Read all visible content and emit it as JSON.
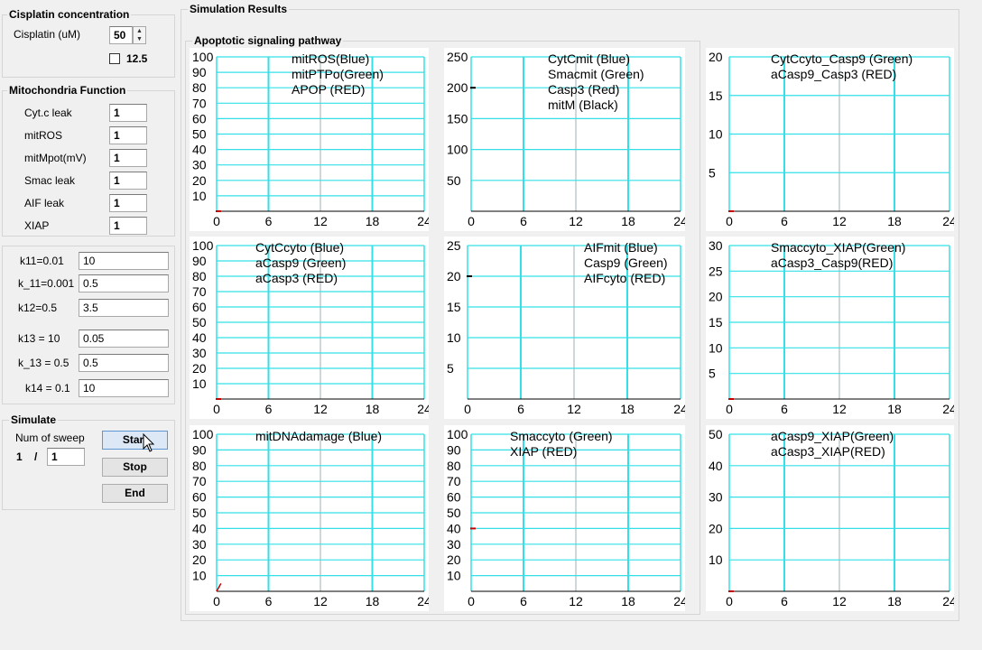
{
  "cisplatin": {
    "title": "Cisplatin concentration",
    "label": "Cisplatin (uM)",
    "value": "50",
    "checkbox_label": "12.5",
    "checkbox_checked": false
  },
  "mito": {
    "title": "Mitochondria Function",
    "fields": [
      {
        "label": "Cyt.c leak",
        "value": "1"
      },
      {
        "label": "mitROS",
        "value": "1"
      },
      {
        "label": "mitMpot(mV)",
        "value": "1"
      },
      {
        "label": "Smac leak",
        "value": "1"
      },
      {
        "label": "AIF leak",
        "value": "1"
      },
      {
        "label": "XIAP",
        "value": "1"
      }
    ]
  },
  "rates": [
    {
      "label": "k11=0.01",
      "value": "10"
    },
    {
      "label": "k_11=0.001",
      "value": "0.5"
    },
    {
      "label": "k12=0.5",
      "value": "3.5"
    },
    {
      "label": "k13 = 10",
      "value": "0.05"
    },
    {
      "label": "k_13 = 0.5",
      "value": "0.5"
    },
    {
      "label": "k14 = 0.1",
      "value": "10"
    }
  ],
  "simulate": {
    "title": "Simulate",
    "sweep_label": "Num of sweep",
    "current": "1",
    "sep": "/",
    "total": "1",
    "start": "Start",
    "stop": "Stop",
    "end": "End"
  },
  "results": {
    "title": "Simulation Results",
    "subtitle": "Apoptotic signaling pathway"
  },
  "chart_data": [
    {
      "type": "line",
      "ylim": [
        0,
        100
      ],
      "yticks": [
        10,
        20,
        30,
        40,
        50,
        60,
        70,
        80,
        90,
        100
      ],
      "legend": [
        "mitROS(Blue)",
        "mitPTPo(Green)",
        "APOP (RED)"
      ],
      "series": [],
      "marks": [
        {
          "x": 0,
          "y": 0,
          "color": "#c00000"
        }
      ]
    },
    {
      "type": "line",
      "ylim": [
        0,
        250
      ],
      "yticks": [
        50,
        100,
        150,
        200,
        250
      ],
      "legend": [
        "CytCmit (Blue)",
        "Smacmit (Green)",
        "Casp3 (Red)",
        "mitM (Black)"
      ],
      "series": [],
      "marks": [
        {
          "x": 0,
          "y": 200,
          "color": "#000000"
        }
      ]
    },
    {
      "type": "line",
      "ylim": [
        0,
        20
      ],
      "yticks": [
        5,
        10,
        15,
        20
      ],
      "legend": [
        "CytCcyto_Casp9 (Green)",
        "aCasp9_Casp3 (RED)"
      ],
      "series": [],
      "marks": [
        {
          "x": 0,
          "y": 0,
          "color": "#c00000"
        }
      ]
    },
    {
      "type": "line",
      "ylim": [
        0,
        100
      ],
      "yticks": [
        10,
        20,
        30,
        40,
        50,
        60,
        70,
        80,
        90,
        100
      ],
      "legend": [
        "CytCcyto (Blue)",
        "aCasp9 (Green)",
        "aCasp3 (RED)"
      ],
      "series": [],
      "marks": [
        {
          "x": 0,
          "y": 0,
          "color": "#c00000"
        }
      ]
    },
    {
      "type": "line",
      "ylim": [
        0,
        25
      ],
      "yticks": [
        5,
        10,
        15,
        20,
        25
      ],
      "legend": [
        "AIFmit (Blue)",
        "Casp9 (Green)",
        "AIFcyto (RED)"
      ],
      "series": [],
      "marks": [
        {
          "x": 0,
          "y": 20,
          "color": "#000000"
        }
      ]
    },
    {
      "type": "line",
      "ylim": [
        0,
        30
      ],
      "yticks": [
        5,
        10,
        15,
        20,
        25,
        30
      ],
      "legend": [
        "Smaccyto_XIAP(Green)",
        "aCasp3_Casp9(RED)"
      ],
      "series": [],
      "marks": [
        {
          "x": 0,
          "y": 0,
          "color": "#c00000"
        }
      ]
    },
    {
      "type": "line",
      "ylim": [
        0,
        100
      ],
      "yticks": [
        10,
        20,
        30,
        40,
        50,
        60,
        70,
        80,
        90,
        100
      ],
      "legend": [
        "mitDNAdamage (Blue)"
      ],
      "series": [],
      "marks": [
        {
          "x": 0,
          "y": 0,
          "color": "#c00000",
          "x2": 0.5,
          "y2": 5
        }
      ]
    },
    {
      "type": "line",
      "ylim": [
        0,
        100
      ],
      "yticks": [
        10,
        20,
        30,
        40,
        50,
        60,
        70,
        80,
        90,
        100
      ],
      "legend": [
        "Smaccyto (Green)",
        "XIAP (RED)"
      ],
      "series": [],
      "marks": [
        {
          "x": 0,
          "y": 40,
          "color": "#c00000"
        }
      ]
    },
    {
      "type": "line",
      "ylim": [
        0,
        50
      ],
      "yticks": [
        10,
        20,
        30,
        40,
        50
      ],
      "legend": [
        "aCasp9_XIAP(Green)",
        "aCasp3_XIAP(RED)"
      ],
      "series": [],
      "marks": [
        {
          "x": 0,
          "y": 0,
          "color": "#c00000"
        }
      ]
    }
  ],
  "xticks": [
    0,
    6,
    12,
    18,
    24
  ],
  "colors": {
    "grid_major": "#33e0e8",
    "grid_minor": "#9fb0b2",
    "axis": "#000000"
  }
}
